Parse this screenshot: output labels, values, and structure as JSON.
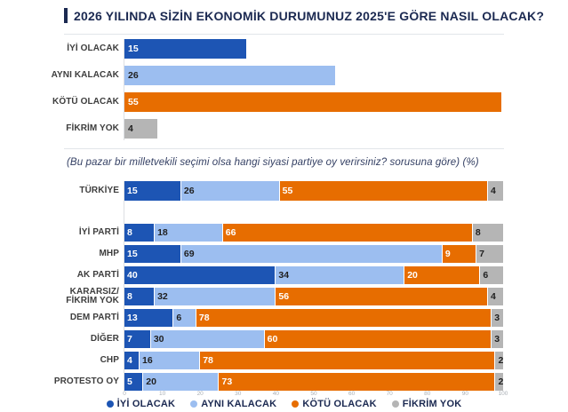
{
  "colors": {
    "iyi_olacak": "#1d55b4",
    "ayni_kalacak": "#9cbef0",
    "kotu_olacak": "#e76d00",
    "fikrim_yok": "#b5b5b5",
    "title_navy": "#1b2951"
  },
  "chart_data": [
    {
      "type": "bar",
      "title": "2026 YILINDA SİZİN EKONOMİK DURUMUNUZ 2025'E GÖRE NASIL OLACAK?",
      "categories": [
        "İYİ OLACAK",
        "AYNI KALACAK",
        "KÖTÜ OLACAK",
        "FİKRİM YOK"
      ],
      "values": [
        15,
        26,
        55,
        4
      ],
      "colors": [
        "#1d55b4",
        "#9cbef0",
        "#e76d00",
        "#b5b5b5"
      ],
      "value_label_colors": [
        "#ffffff",
        "#1f1f1f",
        "#ffffff",
        "#1f1f1f"
      ],
      "unit": "%",
      "grid": false
    },
    {
      "type": "stacked_bar",
      "title": "(Bu pazar bir milletvekili seçimi olsa hangi siyasi partiye oy verirsiniz? sorusuna göre) (%)",
      "categories": [
        "TÜRKİYE",
        "İYİ PARTİ",
        "MHP",
        "AK PARTİ",
        "KARARSIZ/\nFİKRİM YOK",
        "DEM PARTİ",
        "DİĞER",
        "CHP",
        "PROTESTO OY"
      ],
      "series": [
        {
          "name": "İYİ OLACAK",
          "color": "#1d55b4",
          "label_color": "#ffffff",
          "values": [
            15,
            8,
            15,
            40,
            8,
            13,
            7,
            4,
            5
          ]
        },
        {
          "name": "AYNI KALACAK",
          "color": "#9cbef0",
          "label_color": "#1f1f1f",
          "values": [
            26,
            18,
            69,
            34,
            32,
            6,
            30,
            16,
            20
          ]
        },
        {
          "name": "KÖTÜ OLACAK",
          "color": "#e76d00",
          "label_color": "#ffffff",
          "values": [
            55,
            66,
            9,
            20,
            56,
            78,
            60,
            78,
            73
          ]
        },
        {
          "name": "FİKRİM YOK",
          "color": "#b5b5b5",
          "label_color": "#1f1f1f",
          "values": [
            4,
            8,
            7,
            6,
            4,
            3,
            3,
            2,
            2
          ]
        }
      ],
      "xlim": [
        0,
        100
      ],
      "x_ticks": [
        0,
        10,
        20,
        30,
        40,
        50,
        60,
        70,
        80,
        90,
        100
      ],
      "legend_position": "bottom",
      "grid": false
    }
  ]
}
